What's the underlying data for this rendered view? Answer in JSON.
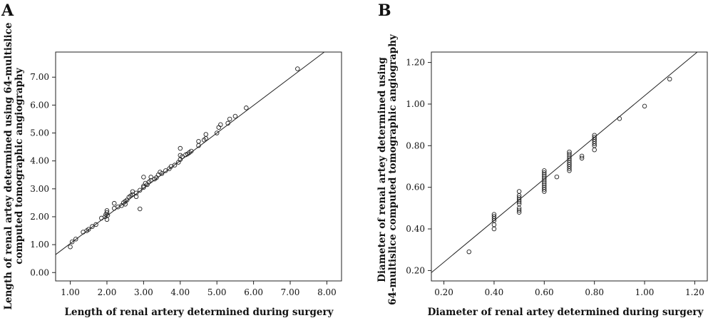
{
  "chart_data": [
    {
      "type": "scatter",
      "panel_label": "A",
      "xlabel": "Length of renal artery determined during surgery",
      "ylabel_lines": [
        "Length of renal artey determined using 64-multislice",
        "computed tomographic angiography"
      ],
      "xlim": [
        0.6,
        8.4
      ],
      "ylim": [
        -0.3,
        7.9
      ],
      "xticks": [
        1.0,
        2.0,
        3.0,
        4.0,
        5.0,
        6.0,
        7.0,
        8.0
      ],
      "yticks": [
        0.0,
        1.0,
        2.0,
        3.0,
        4.0,
        5.0,
        6.0,
        7.0
      ],
      "xtick_labels": [
        "1.00",
        "2.00",
        "3.00",
        "4.00",
        "5.00",
        "6.00",
        "7.00",
        "8.00"
      ],
      "ytick_labels": [
        "0.00",
        "1.00",
        "2.00",
        "3.00",
        "4.00",
        "5.00",
        "6.00",
        "7.00"
      ],
      "fit_line": {
        "slope": 0.99,
        "intercept": 0.05
      },
      "grid": false,
      "points": [
        [
          1.0,
          0.92
        ],
        [
          1.05,
          1.1
        ],
        [
          1.15,
          1.2
        ],
        [
          1.35,
          1.45
        ],
        [
          1.45,
          1.5
        ],
        [
          1.5,
          1.55
        ],
        [
          1.6,
          1.65
        ],
        [
          1.7,
          1.72
        ],
        [
          1.85,
          1.95
        ],
        [
          1.95,
          2.0
        ],
        [
          1.97,
          2.08
        ],
        [
          2.0,
          1.9
        ],
        [
          2.0,
          2.15
        ],
        [
          2.0,
          2.22
        ],
        [
          2.02,
          2.05
        ],
        [
          2.2,
          2.3
        ],
        [
          2.2,
          2.48
        ],
        [
          2.3,
          2.35
        ],
        [
          2.4,
          2.4
        ],
        [
          2.45,
          2.5
        ],
        [
          2.5,
          2.55
        ],
        [
          2.5,
          2.45
        ],
        [
          2.55,
          2.6
        ],
        [
          2.6,
          2.7
        ],
        [
          2.65,
          2.75
        ],
        [
          2.7,
          2.8
        ],
        [
          2.7,
          2.9
        ],
        [
          2.8,
          2.85
        ],
        [
          2.8,
          2.72
        ],
        [
          2.9,
          2.95
        ],
        [
          2.9,
          2.28
        ],
        [
          3.0,
          3.05
        ],
        [
          3.0,
          3.1
        ],
        [
          3.0,
          3.42
        ],
        [
          3.05,
          3.2
        ],
        [
          3.1,
          3.15
        ],
        [
          3.15,
          3.25
        ],
        [
          3.2,
          3.3
        ],
        [
          3.2,
          3.42
        ],
        [
          3.3,
          3.35
        ],
        [
          3.35,
          3.4
        ],
        [
          3.4,
          3.5
        ],
        [
          3.45,
          3.6
        ],
        [
          3.5,
          3.55
        ],
        [
          3.6,
          3.65
        ],
        [
          3.7,
          3.72
        ],
        [
          3.75,
          3.8
        ],
        [
          3.85,
          3.85
        ],
        [
          3.95,
          3.95
        ],
        [
          4.0,
          4.05
        ],
        [
          4.0,
          4.2
        ],
        [
          4.0,
          4.45
        ],
        [
          4.05,
          4.15
        ],
        [
          4.15,
          4.22
        ],
        [
          4.2,
          4.25
        ],
        [
          4.25,
          4.3
        ],
        [
          4.3,
          4.35
        ],
        [
          4.5,
          4.55
        ],
        [
          4.5,
          4.7
        ],
        [
          4.65,
          4.75
        ],
        [
          4.7,
          4.8
        ],
        [
          4.7,
          4.95
        ],
        [
          5.0,
          5.0
        ],
        [
          5.05,
          5.2
        ],
        [
          5.1,
          5.3
        ],
        [
          5.3,
          5.35
        ],
        [
          5.35,
          5.5
        ],
        [
          5.5,
          5.6
        ],
        [
          5.8,
          5.9
        ],
        [
          7.2,
          7.3
        ]
      ]
    },
    {
      "type": "scatter",
      "panel_label": "B",
      "xlabel": "Diameter of renal artey determined during surgery",
      "ylabel_lines": [
        "Diameter of renal artey determined using",
        "64-multislice computed tomographic angiography"
      ],
      "xlim": [
        0.15,
        1.25
      ],
      "ylim": [
        0.15,
        1.25
      ],
      "xticks": [
        0.2,
        0.4,
        0.6,
        0.8,
        1.0,
        1.2
      ],
      "yticks": [
        0.2,
        0.4,
        0.6,
        0.8,
        1.0,
        1.2
      ],
      "xtick_labels": [
        "0.20",
        "0.40",
        "0.60",
        "0.80",
        "1.00",
        "1.20"
      ],
      "ytick_labels": [
        "0.20",
        "0.40",
        "0.60",
        "0.80",
        "1.00",
        "1.20"
      ],
      "fit_line": {
        "slope": 1.0,
        "intercept": 0.04
      },
      "grid": false,
      "points": [
        [
          0.3,
          0.29
        ],
        [
          0.4,
          0.4
        ],
        [
          0.4,
          0.42
        ],
        [
          0.4,
          0.44
        ],
        [
          0.4,
          0.45
        ],
        [
          0.4,
          0.46
        ],
        [
          0.4,
          0.47
        ],
        [
          0.5,
          0.48
        ],
        [
          0.5,
          0.49
        ],
        [
          0.5,
          0.5
        ],
        [
          0.5,
          0.52
        ],
        [
          0.5,
          0.53
        ],
        [
          0.5,
          0.54
        ],
        [
          0.5,
          0.55
        ],
        [
          0.5,
          0.56
        ],
        [
          0.5,
          0.58
        ],
        [
          0.6,
          0.58
        ],
        [
          0.6,
          0.59
        ],
        [
          0.6,
          0.6
        ],
        [
          0.6,
          0.61
        ],
        [
          0.6,
          0.62
        ],
        [
          0.6,
          0.63
        ],
        [
          0.6,
          0.64
        ],
        [
          0.6,
          0.65
        ],
        [
          0.6,
          0.66
        ],
        [
          0.6,
          0.67
        ],
        [
          0.6,
          0.68
        ],
        [
          0.65,
          0.65
        ],
        [
          0.7,
          0.68
        ],
        [
          0.7,
          0.69
        ],
        [
          0.7,
          0.7
        ],
        [
          0.7,
          0.71
        ],
        [
          0.7,
          0.72
        ],
        [
          0.7,
          0.73
        ],
        [
          0.7,
          0.74
        ],
        [
          0.7,
          0.75
        ],
        [
          0.7,
          0.76
        ],
        [
          0.7,
          0.77
        ],
        [
          0.75,
          0.74
        ],
        [
          0.75,
          0.75
        ],
        [
          0.8,
          0.78
        ],
        [
          0.8,
          0.8
        ],
        [
          0.8,
          0.81
        ],
        [
          0.8,
          0.82
        ],
        [
          0.8,
          0.83
        ],
        [
          0.8,
          0.84
        ],
        [
          0.8,
          0.85
        ],
        [
          0.9,
          0.93
        ],
        [
          1.0,
          0.99
        ],
        [
          1.1,
          1.12
        ]
      ]
    }
  ]
}
